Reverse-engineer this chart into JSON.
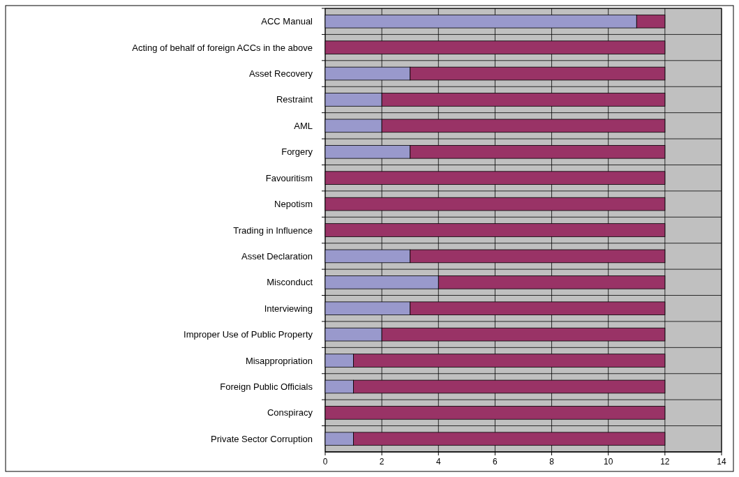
{
  "chart_data": {
    "type": "bar",
    "orientation": "horizontal",
    "stacked": true,
    "categories": [
      "ACC Manual",
      "Acting of behalf of foreign ACCs in the above",
      "Asset Recovery",
      "Restraint",
      "AML",
      "Forgery",
      "Favouritism",
      "Nepotism",
      "Trading in Influence",
      "Asset Declaration",
      "Misconduct",
      "Interviewing",
      "Improper Use of Public Property",
      "Misappropriation",
      "Foreign Public Officials",
      "Conspiracy",
      "Private Sector Corruption"
    ],
    "series": [
      {
        "color": "#9999cc",
        "values": [
          11,
          0,
          3,
          2,
          2,
          3,
          0,
          0,
          0,
          3,
          4,
          3,
          2,
          1,
          1,
          0,
          1
        ]
      },
      {
        "color": "#993366",
        "values": [
          1,
          12,
          9,
          10,
          10,
          9,
          12,
          12,
          12,
          9,
          8,
          9,
          10,
          11,
          11,
          12,
          11
        ]
      }
    ],
    "xlim": [
      0,
      14
    ],
    "xticks": [
      0,
      2,
      4,
      6,
      8,
      10,
      12,
      14
    ],
    "grid": true
  }
}
